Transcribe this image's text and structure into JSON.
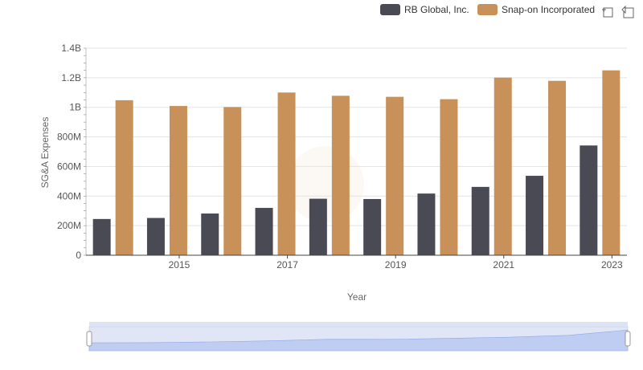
{
  "chart_data": {
    "type": "bar",
    "title": "",
    "xlabel": "Year",
    "ylabel": "SG&A Expenses",
    "x": [
      2014,
      2015,
      2016,
      2017,
      2018,
      2019,
      2020,
      2021,
      2022,
      2023
    ],
    "x_tick_labels": [
      "2015",
      "2017",
      "2019",
      "2021",
      "2023"
    ],
    "x_tick_values": [
      2015,
      2017,
      2019,
      2021,
      2023
    ],
    "y_tick_labels": [
      "0",
      "200M",
      "400M",
      "600M",
      "800M",
      "1B",
      "1.2B",
      "1.4B"
    ],
    "y_tick_values": [
      0,
      200000000,
      400000000,
      600000000,
      800000000,
      1000000000,
      1200000000,
      1400000000
    ],
    "ylim": [
      0,
      1400000000
    ],
    "grid": "horizontal",
    "legend_position": "top-right",
    "series": [
      {
        "name": "RB Global, Inc.",
        "color": "#4a4a55",
        "values": [
          245000000,
          252000000,
          282000000,
          320000000,
          382000000,
          380000000,
          417000000,
          462000000,
          537000000,
          742000000
        ]
      },
      {
        "name": "Snap-on Incorporated",
        "color": "#c8915a",
        "values": [
          1048000000,
          1009000000,
          1002000000,
          1100000000,
          1078000000,
          1071000000,
          1055000000,
          1201000000,
          1179000000,
          1250000000
        ]
      }
    ]
  },
  "toolbar": {
    "zoom_icon": "zoom-select-icon",
    "reset_icon": "zoom-reset-icon"
  },
  "data_zoom": {
    "start_percent": 0,
    "end_percent": 100
  }
}
